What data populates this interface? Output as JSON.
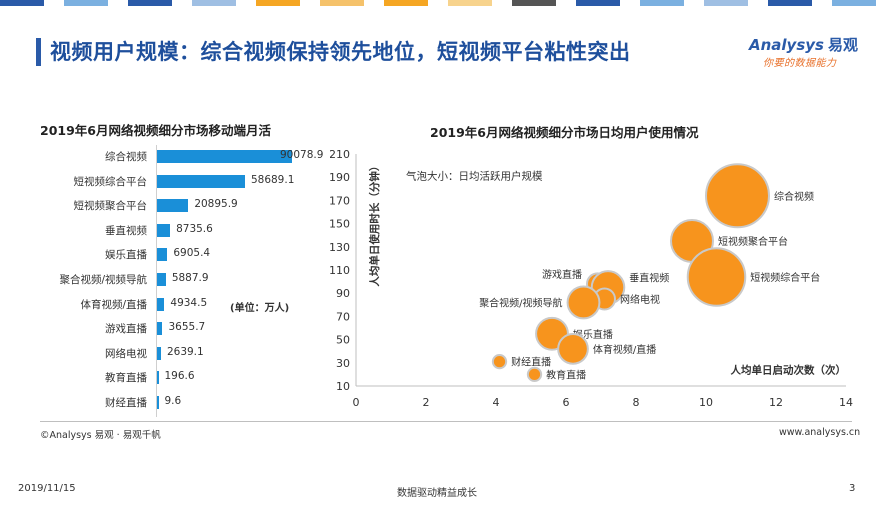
{
  "header": {
    "title": "视频用户规模：综合视频保持领先地位，短视频平台粘性突出",
    "logo_en": "Analysys",
    "logo_cn": "易观",
    "logo_slogan": "你要的数据能力"
  },
  "colors": {
    "bar": "#1a8fd8",
    "bubble_fill": "#f7941d",
    "bubble_stroke": "#c9c9c9",
    "title": "#1e4f9c",
    "top_stripes": [
      "#2a5aa8",
      "#7bb0e0",
      "#2a5aa8",
      "#9fbfe3",
      "#f5a623",
      "#f5c26b",
      "#f5a623",
      "#f7d38d",
      "#555555",
      "#2a5aa8",
      "#7bb0e0",
      "#9fbfe3",
      "#2a5aa8",
      "#7bb0e0"
    ]
  },
  "chart_data": [
    {
      "type": "bar",
      "orientation": "horizontal",
      "title": "2019年6月网络视频细分市场移动端月活",
      "unit_note": "(单位：万人)",
      "categories": [
        "综合视频",
        "短视频综合平台",
        "短视频聚合平台",
        "垂直视频",
        "娱乐直播",
        "聚合视频/视频导航",
        "体育视频/直播",
        "游戏直播",
        "网络电视",
        "教育直播",
        "财经直播"
      ],
      "values": [
        90078.9,
        58689.1,
        20895.9,
        8735.6,
        6905.4,
        5887.9,
        4934.5,
        3655.7,
        2639.1,
        196.6,
        9.6
      ],
      "value_labels": [
        "90078.9",
        "58689.1",
        "20895.9",
        "8735.6",
        "6905.4",
        "5887.9",
        "4934.5",
        "3655.7",
        "2639.1",
        "196.6",
        "9.6"
      ]
    },
    {
      "type": "scatter",
      "subtype": "bubble",
      "title": "2019年6月网络视频细分市场日均用户使用情况",
      "bubble_note": "气泡大小：日均活跃用户规模",
      "xlabel": "人均单日启动次数（次）",
      "ylabel": "人均单日使用时长（分钟）",
      "xlim": [
        0,
        14
      ],
      "ylim": [
        10,
        210
      ],
      "x_ticks": [
        "0",
        "2",
        "4",
        "6",
        "8",
        "10",
        "12",
        "14"
      ],
      "y_ticks": [
        "10",
        "30",
        "50",
        "70",
        "90",
        "110",
        "130",
        "150",
        "170",
        "190",
        "210"
      ],
      "points": [
        {
          "name": "综合视频",
          "x": 10.9,
          "y": 174,
          "size": 9
        },
        {
          "name": "短视频聚合平台",
          "x": 9.6,
          "y": 135,
          "size": 4
        },
        {
          "name": "短视频综合平台",
          "x": 10.3,
          "y": 104,
          "size": 7.5
        },
        {
          "name": "游戏直播",
          "x": 6.9,
          "y": 98,
          "size": 1
        },
        {
          "name": "垂直视频",
          "x": 7.2,
          "y": 95,
          "size": 2.4
        },
        {
          "name": "网络电视",
          "x": 7.1,
          "y": 85,
          "size": 1
        },
        {
          "name": "聚合视频/视频导航",
          "x": 6.5,
          "y": 82,
          "size": 2.3
        },
        {
          "name": "娱乐直播",
          "x": 5.6,
          "y": 55,
          "size": 2.3
        },
        {
          "name": "体育视频/直播",
          "x": 6.2,
          "y": 42,
          "size": 2
        },
        {
          "name": "财经直播",
          "x": 4.1,
          "y": 31,
          "size": 0.4
        },
        {
          "name": "教育直播",
          "x": 5.1,
          "y": 20,
          "size": 0.4
        }
      ]
    }
  ],
  "footer": {
    "source": "©Analysys 易观 · 易观千帆",
    "website": "www.analysys.cn",
    "date": "2019/11/15",
    "slogan": "数据驱动精益成长",
    "page": "3"
  }
}
